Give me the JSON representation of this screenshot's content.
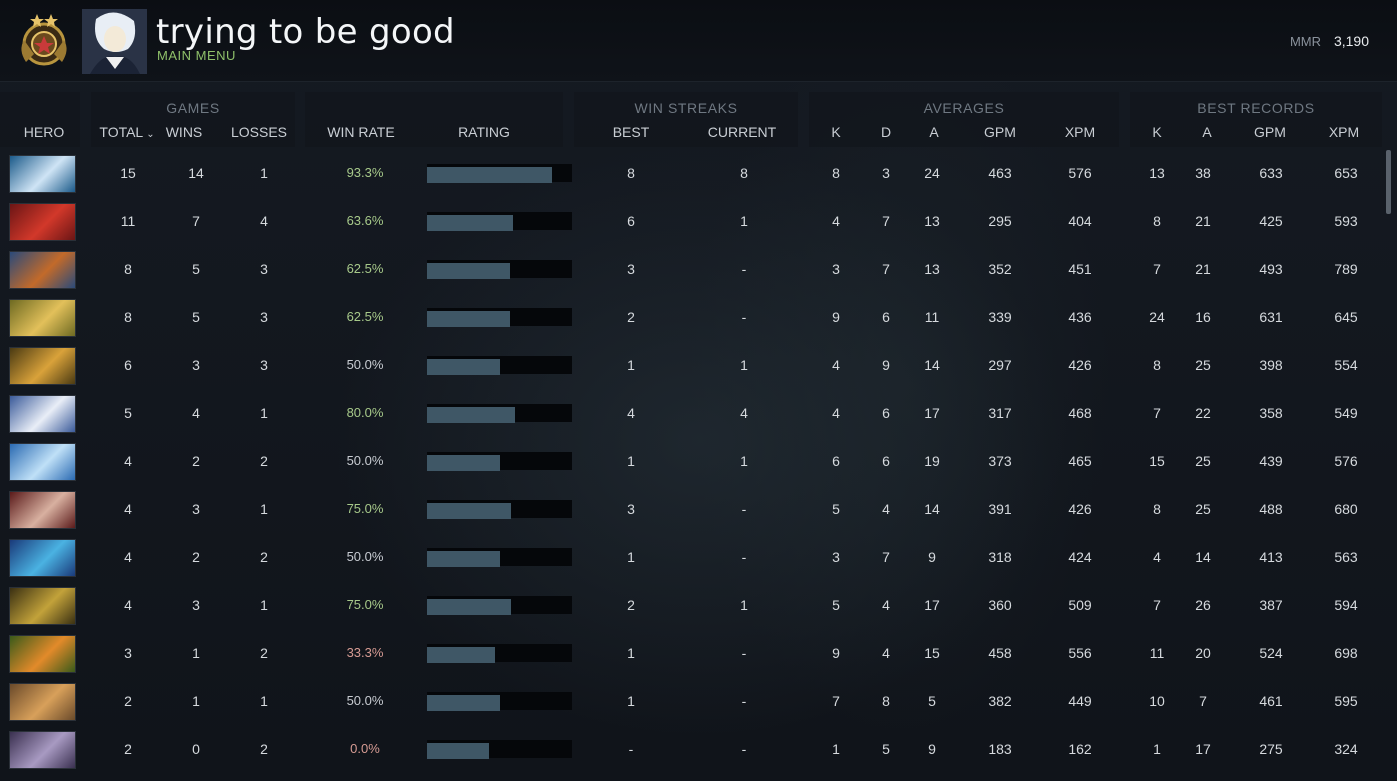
{
  "header": {
    "player_name": "trying to be good",
    "main_menu": "MAIN MENU",
    "mmr_label": "MMR",
    "mmr_value": "3,190"
  },
  "groups": {
    "games": "GAMES",
    "win_streaks": "WIN STREAKS",
    "averages": "AVERAGES",
    "best_records": "BEST RECORDS"
  },
  "columns": {
    "hero": "HERO",
    "total": "TOTAL",
    "wins": "WINS",
    "losses": "LOSSES",
    "win_rate": "WIN RATE",
    "rating": "RATING",
    "best": "BEST",
    "current": "CURRENT",
    "avg_k": "K",
    "avg_d": "D",
    "avg_a": "A",
    "avg_gpm": "GPM",
    "avg_xpm": "XPM",
    "best_k": "K",
    "best_a": "A",
    "best_gpm": "GPM",
    "best_xpm": "XPM"
  },
  "colors": {
    "accent_green": "#8fc06a",
    "rating_bar": "#3f5766",
    "winrate_high": "#a7c98a",
    "winrate_low": "#d69b93"
  },
  "rows": [
    {
      "hero_icon": "zeus-hero-portrait",
      "hero_colors": [
        "#1b5a8a",
        "#cfe4f5"
      ],
      "total": "15",
      "wins": "14",
      "losses": "1",
      "win_rate": "93.3%",
      "rating": 0.86,
      "best": "8",
      "current": "8",
      "avg_k": "8",
      "avg_d": "3",
      "avg_a": "24",
      "avg_gpm": "463",
      "avg_xpm": "576",
      "best_k": "13",
      "best_a": "38",
      "best_gpm": "633",
      "best_xpm": "653"
    },
    {
      "hero_icon": "bloodseeker-hero-portrait",
      "hero_colors": [
        "#6b1515",
        "#d2382a"
      ],
      "total": "11",
      "wins": "7",
      "losses": "4",
      "win_rate": "63.6%",
      "rating": 0.59,
      "best": "6",
      "current": "1",
      "avg_k": "4",
      "avg_d": "7",
      "avg_a": "13",
      "avg_gpm": "295",
      "avg_xpm": "404",
      "best_k": "8",
      "best_a": "21",
      "best_gpm": "425",
      "best_xpm": "593"
    },
    {
      "hero_icon": "gyrocopter-hero-portrait",
      "hero_colors": [
        "#2a4a7a",
        "#c26a2a"
      ],
      "total": "8",
      "wins": "5",
      "losses": "3",
      "win_rate": "62.5%",
      "rating": 0.57,
      "best": "3",
      "current": "-",
      "avg_k": "3",
      "avg_d": "7",
      "avg_a": "13",
      "avg_gpm": "352",
      "avg_xpm": "451",
      "best_k": "7",
      "best_a": "21",
      "best_gpm": "493",
      "best_xpm": "789"
    },
    {
      "hero_icon": "omniknight-hero-portrait",
      "hero_colors": [
        "#6e6a22",
        "#e2c05a"
      ],
      "total": "8",
      "wins": "5",
      "losses": "3",
      "win_rate": "62.5%",
      "rating": 0.57,
      "best": "2",
      "current": "-",
      "avg_k": "9",
      "avg_d": "6",
      "avg_a": "11",
      "avg_gpm": "339",
      "avg_xpm": "436",
      "best_k": "24",
      "best_a": "16",
      "best_gpm": "631",
      "best_xpm": "645"
    },
    {
      "hero_icon": "alchemist-hero-portrait",
      "hero_colors": [
        "#4a3a12",
        "#d9a23a"
      ],
      "total": "6",
      "wins": "3",
      "losses": "3",
      "win_rate": "50.0%",
      "rating": 0.5,
      "best": "1",
      "current": "1",
      "avg_k": "4",
      "avg_d": "9",
      "avg_a": "14",
      "avg_gpm": "297",
      "avg_xpm": "426",
      "best_k": "8",
      "best_a": "25",
      "best_gpm": "398",
      "best_xpm": "554"
    },
    {
      "hero_icon": "crystal-maiden-hero-portrait",
      "hero_colors": [
        "#3a5a9a",
        "#e9eef7"
      ],
      "total": "5",
      "wins": "4",
      "losses": "1",
      "win_rate": "80.0%",
      "rating": 0.61,
      "best": "4",
      "current": "4",
      "avg_k": "4",
      "avg_d": "6",
      "avg_a": "17",
      "avg_gpm": "317",
      "avg_xpm": "468",
      "best_k": "7",
      "best_a": "22",
      "best_gpm": "358",
      "best_xpm": "549"
    },
    {
      "hero_icon": "ancient-apparition-hero-portrait",
      "hero_colors": [
        "#2a6ab2",
        "#bfe0f7"
      ],
      "total": "4",
      "wins": "2",
      "losses": "2",
      "win_rate": "50.0%",
      "rating": 0.5,
      "best": "1",
      "current": "1",
      "avg_k": "6",
      "avg_d": "6",
      "avg_a": "19",
      "avg_gpm": "373",
      "avg_xpm": "465",
      "best_k": "15",
      "best_a": "25",
      "best_gpm": "439",
      "best_xpm": "576"
    },
    {
      "hero_icon": "shadow-demon-hero-portrait",
      "hero_colors": [
        "#5a1a1a",
        "#d8b0a0"
      ],
      "total": "4",
      "wins": "3",
      "losses": "1",
      "win_rate": "75.0%",
      "rating": 0.58,
      "best": "3",
      "current": "-",
      "avg_k": "5",
      "avg_d": "4",
      "avg_a": "14",
      "avg_gpm": "391",
      "avg_xpm": "426",
      "best_k": "8",
      "best_a": "25",
      "best_gpm": "488",
      "best_xpm": "680"
    },
    {
      "hero_icon": "slark-hero-portrait",
      "hero_colors": [
        "#1a3a7a",
        "#4ab2e2"
      ],
      "total": "4",
      "wins": "2",
      "losses": "2",
      "win_rate": "50.0%",
      "rating": 0.5,
      "best": "1",
      "current": "-",
      "avg_k": "3",
      "avg_d": "7",
      "avg_a": "9",
      "avg_gpm": "318",
      "avg_xpm": "424",
      "best_k": "4",
      "best_a": "14",
      "best_gpm": "413",
      "best_xpm": "563"
    },
    {
      "hero_icon": "wraith-king-hero-portrait",
      "hero_colors": [
        "#3a3012",
        "#c2a23a"
      ],
      "total": "4",
      "wins": "3",
      "losses": "1",
      "win_rate": "75.0%",
      "rating": 0.58,
      "best": "2",
      "current": "1",
      "avg_k": "5",
      "avg_d": "4",
      "avg_a": "17",
      "avg_gpm": "360",
      "avg_xpm": "509",
      "best_k": "7",
      "best_a": "26",
      "best_gpm": "387",
      "best_xpm": "594"
    },
    {
      "hero_icon": "windranger-hero-portrait",
      "hero_colors": [
        "#3a5a1a",
        "#e28a2a"
      ],
      "total": "3",
      "wins": "1",
      "losses": "2",
      "win_rate": "33.3%",
      "rating": 0.47,
      "best": "1",
      "current": "-",
      "avg_k": "9",
      "avg_d": "4",
      "avg_a": "15",
      "avg_gpm": "458",
      "avg_xpm": "556",
      "best_k": "11",
      "best_a": "20",
      "best_gpm": "524",
      "best_xpm": "698"
    },
    {
      "hero_icon": "techies-hero-portrait",
      "hero_colors": [
        "#6a4a2a",
        "#d8a05a"
      ],
      "total": "2",
      "wins": "1",
      "losses": "1",
      "win_rate": "50.0%",
      "rating": 0.5,
      "best": "1",
      "current": "-",
      "avg_k": "7",
      "avg_d": "8",
      "avg_a": "5",
      "avg_gpm": "382",
      "avg_xpm": "449",
      "best_k": "10",
      "best_a": "7",
      "best_gpm": "461",
      "best_xpm": "595"
    },
    {
      "hero_icon": "bane-hero-portrait",
      "hero_colors": [
        "#3a3050",
        "#a89ac2"
      ],
      "total": "2",
      "wins": "0",
      "losses": "2",
      "win_rate": "0.0%",
      "rating": 0.43,
      "best": "-",
      "current": "-",
      "avg_k": "1",
      "avg_d": "5",
      "avg_a": "9",
      "avg_gpm": "183",
      "avg_xpm": "162",
      "best_k": "1",
      "best_a": "17",
      "best_gpm": "275",
      "best_xpm": "324"
    }
  ]
}
